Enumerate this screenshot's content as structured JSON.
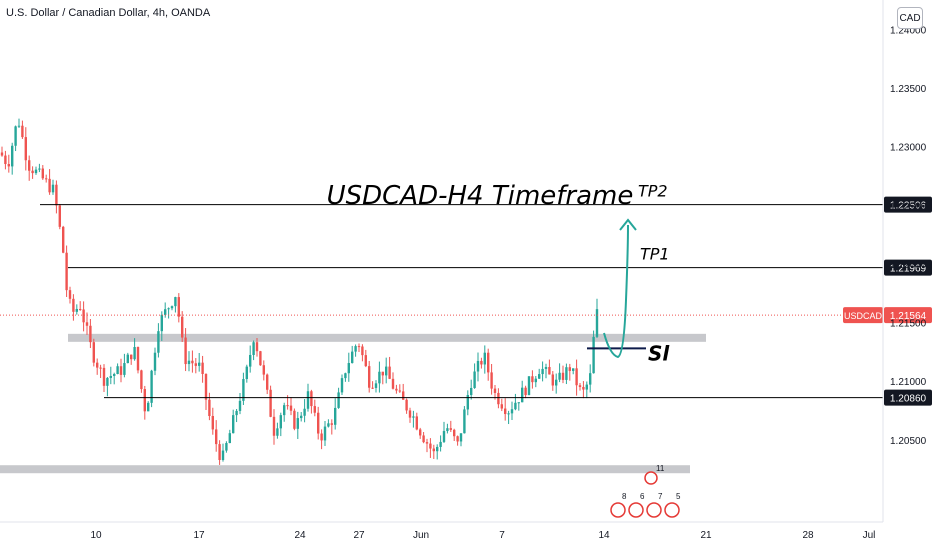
{
  "header": {
    "title": "U.S. Dollar / Canadian Dollar, 4h, OANDA",
    "currency_button": "CAD"
  },
  "colors": {
    "up": "#26a69a",
    "down": "#ef5350",
    "arrow": "#26a69a",
    "zone": "#c7c8cc",
    "line": "#000000",
    "price_tag": "#ef5350"
  },
  "chart_data": {
    "type": "candlestick",
    "instrument": "USDCAD",
    "timeframe": "4h",
    "annotation_title": "USDCAD-H4 Timeframe",
    "y_axis": {
      "ticks": [
        "1.24000",
        "1.23500",
        "1.23000",
        "1.22500",
        "1.22000",
        "1.21500",
        "1.21000",
        "1.20500"
      ],
      "ylim": [
        1.198,
        1.2425
      ]
    },
    "x_axis": {
      "ticks": [
        "10",
        "17",
        "24",
        "27",
        "Jun",
        "7",
        "14",
        "21",
        "28",
        "Jul"
      ]
    },
    "levels": [
      {
        "name": "TP2",
        "label": "TP2",
        "price": 1.22506,
        "tag": "1.22506"
      },
      {
        "name": "TP1",
        "label": "TP1",
        "price": 1.21969,
        "tag": "1.21969"
      },
      {
        "name": "support",
        "label": "",
        "price": 1.2086,
        "tag": "1.20860"
      }
    ],
    "stop_loss": {
      "label": "Sl",
      "price": 1.2128
    },
    "zones": [
      {
        "name": "resistance-zone",
        "price": 1.2137
      },
      {
        "name": "lower-zone",
        "price": 1.2025
      }
    ],
    "current_price": {
      "symbol": "USDCAD",
      "price": 1.21564,
      "tag": "1.21564"
    },
    "events": [
      "8",
      "6",
      "7",
      "5",
      "11"
    ]
  }
}
